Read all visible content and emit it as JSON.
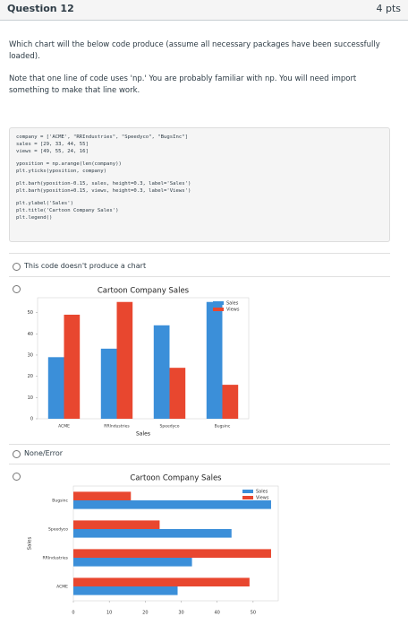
{
  "header": {
    "title": "Question 12",
    "points": "4 pts"
  },
  "question": [
    "Which chart will the below code produce (assume all necessary packages have been successfully loaded).",
    "Note that one line of code uses 'np.' You are probably familiar with np. You will need import something to make that line work."
  ],
  "code": [
    [
      "company = ['ACME', \"RRIndustries\", \"Speedyco\", \"BugsInc\"]",
      "sales = [29, 33, 44, 55]",
      "views = [49, 55, 24, 16]"
    ],
    [
      "yposition = np.arange(len(company))",
      "plt.yticks(yposition, company)"
    ],
    [
      "plt.barh(yposition-0.15, sales, height=0.3, label='Sales')",
      "plt.barh(yposition+0.15, views, height=0.3, label='Views')"
    ],
    [
      "plt.ylabel('Sales')",
      "plt.title('Cartoon Company Sales')",
      "plt.legend()"
    ]
  ],
  "options": [
    "This code doesn't produce a chart",
    "None/Error"
  ],
  "chart_data": [
    {
      "type": "bar",
      "title": "Cartoon Company Sales",
      "x_label": "Sales",
      "categories": [
        "ACME",
        "RRIndustries",
        "Speedyco",
        "Bugsinc"
      ],
      "series": [
        {
          "name": "Sales",
          "color": "#3b8fd9",
          "values": [
            29,
            33,
            44,
            55
          ]
        },
        {
          "name": "Views",
          "color": "#e8472f",
          "values": [
            49,
            55,
            24,
            16
          ]
        }
      ],
      "ylim": [
        0,
        57
      ],
      "yticks": [
        0,
        10,
        20,
        30,
        40,
        50
      ],
      "legend": "upper right"
    },
    {
      "type": "barh",
      "title": "Cartoon Company Sales",
      "y_label": "Sales",
      "categories": [
        "ACME",
        "RRIndustries",
        "Speedyco",
        "Bugsinc"
      ],
      "series": [
        {
          "name": "Sales",
          "color": "#3b8fd9",
          "values": [
            29,
            33,
            44,
            55
          ]
        },
        {
          "name": "Views",
          "color": "#e8472f",
          "values": [
            49,
            55,
            24,
            16
          ]
        }
      ],
      "xlim": [
        0,
        57
      ],
      "xticks": [
        0,
        10,
        20,
        30,
        40,
        50
      ],
      "legend": "upper right"
    }
  ]
}
